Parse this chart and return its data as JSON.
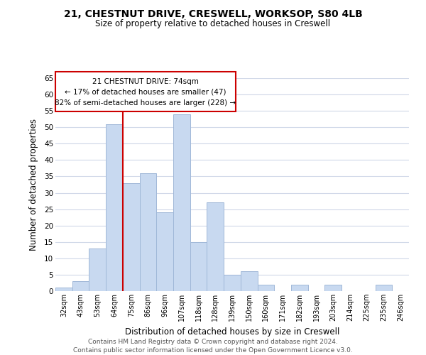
{
  "title": "21, CHESTNUT DRIVE, CRESWELL, WORKSOP, S80 4LB",
  "subtitle": "Size of property relative to detached houses in Creswell",
  "xlabel": "Distribution of detached houses by size in Creswell",
  "ylabel": "Number of detached properties",
  "bar_color": "#c8d9f0",
  "bar_edge_color": "#a0b8d8",
  "highlight_color": "#cc0000",
  "bins": [
    "32sqm",
    "43sqm",
    "53sqm",
    "64sqm",
    "75sqm",
    "86sqm",
    "96sqm",
    "107sqm",
    "118sqm",
    "128sqm",
    "139sqm",
    "150sqm",
    "160sqm",
    "171sqm",
    "182sqm",
    "193sqm",
    "203sqm",
    "214sqm",
    "225sqm",
    "235sqm",
    "246sqm"
  ],
  "values": [
    1,
    3,
    13,
    51,
    33,
    36,
    24,
    54,
    15,
    27,
    5,
    6,
    2,
    0,
    2,
    0,
    2,
    0,
    0,
    2,
    0
  ],
  "ylim": [
    0,
    65
  ],
  "yticks": [
    0,
    5,
    10,
    15,
    20,
    25,
    30,
    35,
    40,
    45,
    50,
    55,
    60,
    65
  ],
  "annotation_title": "21 CHESTNUT DRIVE: 74sqm",
  "annotation_line1": "← 17% of detached houses are smaller (47)",
  "annotation_line2": "82% of semi-detached houses are larger (228) →",
  "footer1": "Contains HM Land Registry data © Crown copyright and database right 2024.",
  "footer2": "Contains public sector information licensed under the Open Government Licence v3.0.",
  "background_color": "#ffffff",
  "grid_color": "#d0d8e8"
}
